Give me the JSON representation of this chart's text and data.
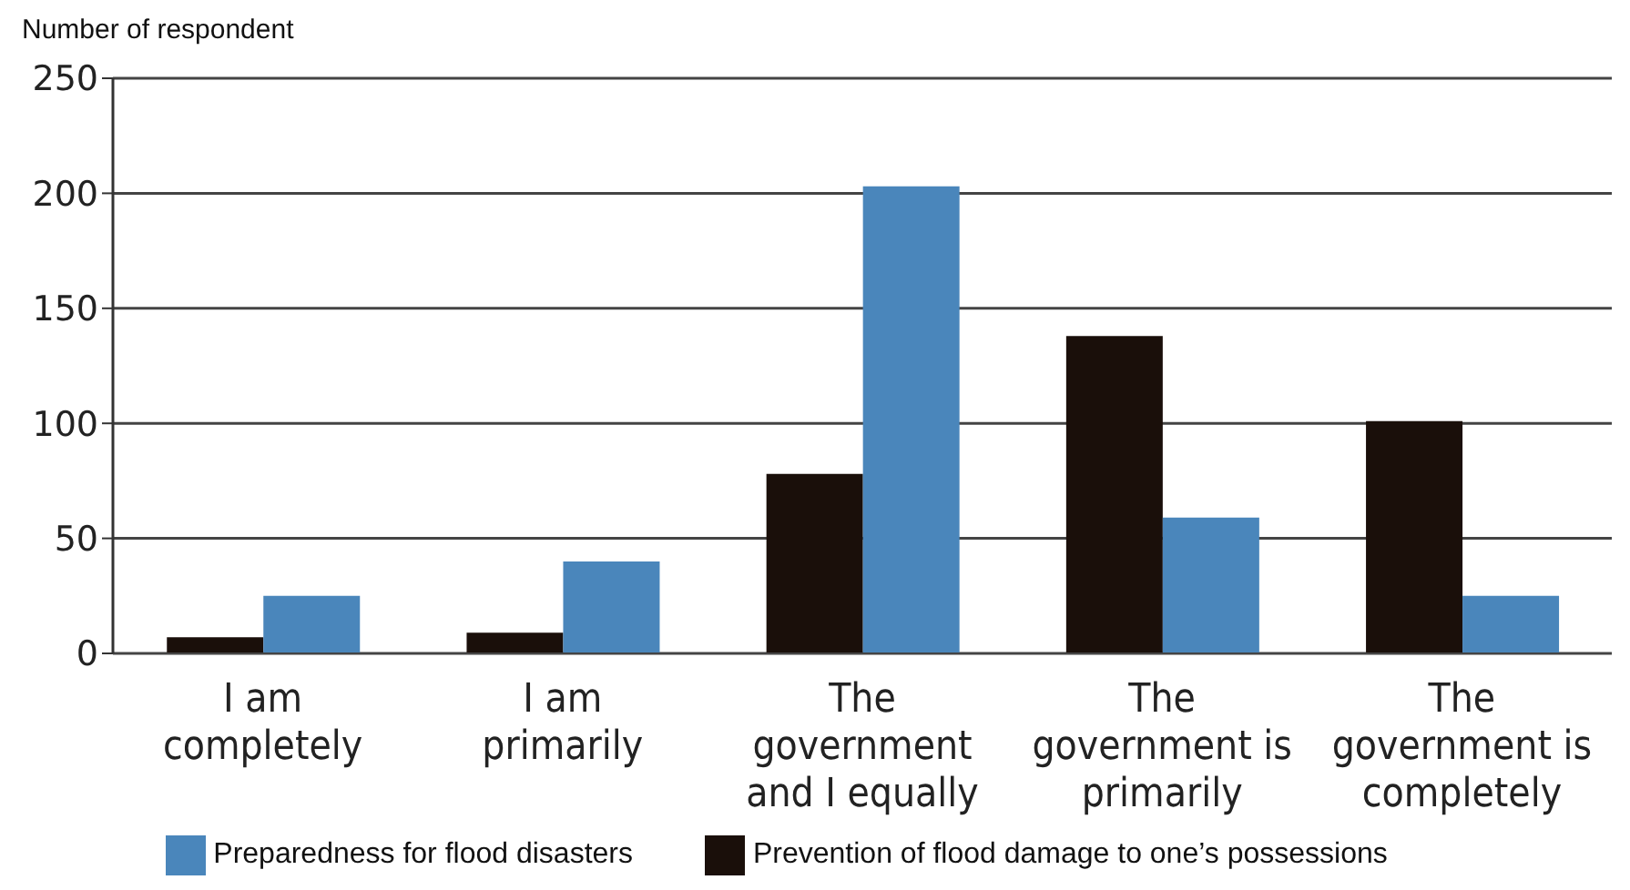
{
  "chart_data": {
    "type": "bar",
    "ylabel": "Number of respondent",
    "categories": [
      "I am completely",
      "I am primarily",
      "The government and I equally",
      "The government is primarily",
      "The government is completely"
    ],
    "series": [
      {
        "name": "Prevention of flood damage to one’s possessions",
        "color": "#1a0f0a",
        "values": [
          7,
          9,
          78,
          138,
          101
        ]
      },
      {
        "name": "Preparedness for flood disasters",
        "color": "#4a86bb",
        "values": [
          25,
          40,
          203,
          59,
          25
        ]
      }
    ],
    "ylim": [
      0,
      250
    ],
    "yticks": [
      0,
      50,
      100,
      150,
      200,
      250
    ],
    "grid": "y",
    "legend": "bottom"
  }
}
